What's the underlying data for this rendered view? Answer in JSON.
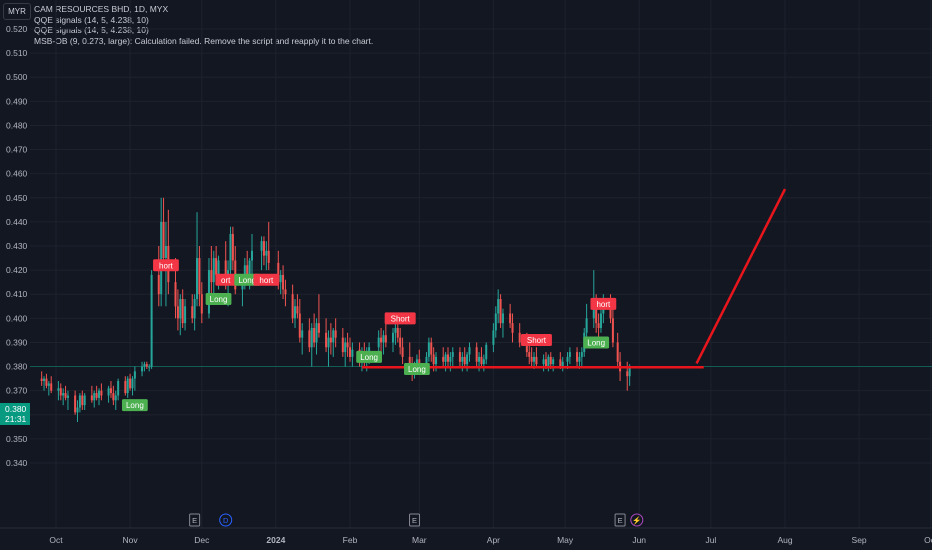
{
  "currency_button": "MYR",
  "legend": [
    "CAM RESOURCES BHD, 1D, MYX",
    "QQE signals (14, 5, 4.238, 10)",
    "QQE signals (14, 5, 4.238, 10)",
    "MSB-OB (9, 0.273, large): Calculation failed. Remove the script and reapply it to the chart."
  ],
  "price_tag": {
    "value": "0.380",
    "countdown": "21:31"
  },
  "colors": {
    "up": "#26a69a",
    "down": "#ef5350",
    "long": "#4caf50",
    "short": "#f23645",
    "drawing": "#e8161c",
    "grid": "#1e222d",
    "background": "#131722"
  },
  "chart_data": {
    "type": "candlestick",
    "ylim": [
      0.335,
      0.525
    ],
    "y_ticks": [
      "0.340",
      "0.350",
      "0.360",
      "0.370",
      "0.380",
      "0.390",
      "0.400",
      "0.410",
      "0.420",
      "0.430",
      "0.440",
      "0.450",
      "0.460",
      "0.470",
      "0.480",
      "0.490",
      "0.500",
      "0.510",
      "0.520"
    ],
    "x_ticks": [
      "Oct",
      "Nov",
      "Dec",
      "2024",
      "Feb",
      "Mar",
      "Apr",
      "May",
      "Jun",
      "Jul",
      "Aug",
      "Sep",
      "Oct"
    ],
    "current_price": 0.38,
    "event_markers": [
      {
        "label": "E",
        "date": "2023-11-28"
      },
      {
        "label": "D",
        "date": "2023-12-11"
      },
      {
        "label": "E",
        "date": "2024-02-28"
      },
      {
        "label": "E",
        "date": "2024-05-24"
      },
      {
        "label": "⚡",
        "date": "2024-05-31"
      }
    ],
    "signals": [
      {
        "label": "Long",
        "date": "2023-11-03",
        "price": 0.364
      },
      {
        "label": "hort",
        "date": "2023-11-16",
        "price": 0.422
      },
      {
        "label": "ort",
        "date": "2023-12-11",
        "price": 0.416
      },
      {
        "label": "Long",
        "date": "2023-12-08",
        "price": 0.408
      },
      {
        "label": "Long",
        "date": "2023-12-20",
        "price": 0.416
      },
      {
        "label": "hort",
        "date": "2023-12-28",
        "price": 0.416
      },
      {
        "label": "Short",
        "date": "2024-02-22",
        "price": 0.4
      },
      {
        "label": "Long",
        "date": "2024-02-09",
        "price": 0.384
      },
      {
        "label": "Long",
        "date": "2024-02-29",
        "price": 0.379
      },
      {
        "label": "Short",
        "date": "2024-04-19",
        "price": 0.391
      },
      {
        "label": "Long",
        "date": "2024-05-14",
        "price": 0.39
      },
      {
        "label": "hort",
        "date": "2024-05-17",
        "price": 0.406
      }
    ],
    "drawings": [
      {
        "type": "horizontal-line",
        "from": "2024-02-06",
        "to": "2024-06-28",
        "price": 0.3797
      },
      {
        "type": "trend-line",
        "from": {
          "date": "2024-06-25",
          "price": 0.3813
        },
        "to": {
          "date": "2024-08-01",
          "price": 0.4536
        }
      }
    ],
    "candles": [
      [
        "2023-09-25",
        0.375,
        0.378,
        0.372,
        0.374
      ],
      [
        "2023-09-26",
        0.374,
        0.376,
        0.37,
        0.375
      ],
      [
        "2023-09-27",
        0.375,
        0.377,
        0.371,
        0.372
      ],
      [
        "2023-09-28",
        0.372,
        0.374,
        0.368,
        0.373
      ],
      [
        "2023-09-29",
        0.373,
        0.376,
        0.369,
        0.37
      ],
      [
        "2023-10-02",
        0.37,
        0.374,
        0.366,
        0.371
      ],
      [
        "2023-10-03",
        0.371,
        0.373,
        0.366,
        0.368
      ],
      [
        "2023-10-04",
        0.368,
        0.371,
        0.364,
        0.369
      ],
      [
        "2023-10-05",
        0.369,
        0.372,
        0.366,
        0.367
      ],
      [
        "2023-10-06",
        0.367,
        0.37,
        0.362,
        0.368
      ],
      [
        "2023-10-09",
        0.368,
        0.37,
        0.36,
        0.361
      ],
      [
        "2023-10-10",
        0.361,
        0.366,
        0.357,
        0.363
      ],
      [
        "2023-10-11",
        0.363,
        0.369,
        0.361,
        0.368
      ],
      [
        "2023-10-12",
        0.368,
        0.37,
        0.362,
        0.364
      ],
      [
        "2023-10-13",
        0.364,
        0.369,
        0.362,
        0.368
      ],
      [
        "2023-10-16",
        0.368,
        0.372,
        0.365,
        0.366
      ],
      [
        "2023-10-17",
        0.366,
        0.37,
        0.363,
        0.369
      ],
      [
        "2023-10-18",
        0.369,
        0.372,
        0.366,
        0.367
      ],
      [
        "2023-10-19",
        0.367,
        0.371,
        0.364,
        0.37
      ],
      [
        "2023-10-20",
        0.37,
        0.373,
        0.366,
        0.368
      ],
      [
        "2023-10-23",
        0.368,
        0.372,
        0.365,
        0.371
      ],
      [
        "2023-10-24",
        0.371,
        0.374,
        0.367,
        0.369
      ],
      [
        "2023-10-25",
        0.369,
        0.372,
        0.364,
        0.366
      ],
      [
        "2023-10-26",
        0.366,
        0.37,
        0.362,
        0.368
      ],
      [
        "2023-10-27",
        0.368,
        0.375,
        0.366,
        0.374
      ],
      [
        "2023-10-30",
        0.374,
        0.376,
        0.368,
        0.369
      ],
      [
        "2023-10-31",
        0.369,
        0.376,
        0.367,
        0.375
      ],
      [
        "2023-11-01",
        0.375,
        0.377,
        0.37,
        0.371
      ],
      [
        "2023-11-02",
        0.371,
        0.376,
        0.368,
        0.375
      ],
      [
        "2023-11-03",
        0.375,
        0.38,
        0.37,
        0.378
      ],
      [
        "2023-11-06",
        0.378,
        0.382,
        0.376,
        0.38
      ],
      [
        "2023-11-07",
        0.38,
        0.382,
        0.378,
        0.381
      ],
      [
        "2023-11-08",
        0.381,
        0.382,
        0.379,
        0.38
      ],
      [
        "2023-11-09",
        0.38,
        0.381,
        0.378,
        0.38
      ],
      [
        "2023-11-10",
        0.38,
        0.42,
        0.379,
        0.418
      ],
      [
        "2023-11-13",
        0.418,
        0.43,
        0.405,
        0.41
      ],
      [
        "2023-11-14",
        0.41,
        0.45,
        0.405,
        0.44
      ],
      [
        "2023-11-15",
        0.44,
        0.45,
        0.42,
        0.425
      ],
      [
        "2023-11-16",
        0.425,
        0.44,
        0.405,
        0.43
      ],
      [
        "2023-11-17",
        0.43,
        0.445,
        0.41,
        0.415
      ],
      [
        "2023-11-20",
        0.415,
        0.425,
        0.4,
        0.405
      ],
      [
        "2023-11-21",
        0.405,
        0.412,
        0.395,
        0.4
      ],
      [
        "2023-11-22",
        0.4,
        0.41,
        0.393,
        0.408
      ],
      [
        "2023-11-23",
        0.408,
        0.412,
        0.396,
        0.398
      ],
      [
        "2023-11-24",
        0.398,
        0.408,
        0.395,
        0.405
      ],
      [
        "2023-11-27",
        0.405,
        0.41,
        0.398,
        0.4
      ],
      [
        "2023-11-28",
        0.4,
        0.41,
        0.395,
        0.408
      ],
      [
        "2023-11-29",
        0.408,
        0.444,
        0.405,
        0.425
      ],
      [
        "2023-11-30",
        0.425,
        0.43,
        0.405,
        0.41
      ],
      [
        "2023-12-01",
        0.41,
        0.415,
        0.398,
        0.402
      ],
      [
        "2023-12-04",
        0.402,
        0.425,
        0.4,
        0.42
      ],
      [
        "2023-12-05",
        0.42,
        0.43,
        0.41,
        0.415
      ],
      [
        "2023-12-06",
        0.415,
        0.428,
        0.41,
        0.425
      ],
      [
        "2023-12-07",
        0.425,
        0.43,
        0.414,
        0.418
      ],
      [
        "2023-12-08",
        0.418,
        0.426,
        0.412,
        0.424
      ],
      [
        "2023-12-11",
        0.424,
        0.432,
        0.412,
        0.416
      ],
      [
        "2023-12-12",
        0.416,
        0.424,
        0.405,
        0.42
      ],
      [
        "2023-12-13",
        0.42,
        0.438,
        0.418,
        0.435
      ],
      [
        "2023-12-14",
        0.435,
        0.438,
        0.42,
        0.424
      ],
      [
        "2023-12-15",
        0.424,
        0.43,
        0.41,
        0.412
      ],
      [
        "2023-12-18",
        0.412,
        0.418,
        0.405,
        0.415
      ],
      [
        "2023-12-19",
        0.415,
        0.425,
        0.412,
        0.422
      ],
      [
        "2023-12-20",
        0.422,
        0.428,
        0.416,
        0.418
      ],
      [
        "2023-12-21",
        0.418,
        0.425,
        0.412,
        0.424
      ],
      [
        "2023-12-22",
        0.424,
        0.435,
        0.418,
        0.428
      ],
      [
        "2023-12-26",
        0.428,
        0.434,
        0.42,
        0.432
      ],
      [
        "2023-12-27",
        0.432,
        0.434,
        0.422,
        0.426
      ],
      [
        "2023-12-28",
        0.426,
        0.432,
        0.42,
        0.428
      ],
      [
        "2023-12-29",
        0.428,
        0.44,
        0.42,
        0.423
      ],
      [
        "2024-01-02",
        0.423,
        0.428,
        0.412,
        0.415
      ],
      [
        "2024-01-03",
        0.415,
        0.42,
        0.41,
        0.418
      ],
      [
        "2024-01-04",
        0.418,
        0.422,
        0.408,
        0.412
      ],
      [
        "2024-01-05",
        0.412,
        0.416,
        0.405,
        0.41
      ],
      [
        "2024-01-08",
        0.41,
        0.414,
        0.398,
        0.4
      ],
      [
        "2024-01-09",
        0.4,
        0.408,
        0.396,
        0.405
      ],
      [
        "2024-01-10",
        0.405,
        0.41,
        0.4,
        0.402
      ],
      [
        "2024-01-11",
        0.402,
        0.408,
        0.39,
        0.392
      ],
      [
        "2024-01-12",
        0.392,
        0.398,
        0.385,
        0.395
      ],
      [
        "2024-01-15",
        0.395,
        0.4,
        0.386,
        0.388
      ],
      [
        "2024-01-16",
        0.388,
        0.398,
        0.38,
        0.396
      ],
      [
        "2024-01-17",
        0.396,
        0.402,
        0.388,
        0.39
      ],
      [
        "2024-01-18",
        0.39,
        0.4,
        0.385,
        0.398
      ],
      [
        "2024-01-19",
        0.398,
        0.41,
        0.392,
        0.394
      ],
      [
        "2024-01-22",
        0.394,
        0.4,
        0.386,
        0.388
      ],
      [
        "2024-01-23",
        0.388,
        0.395,
        0.38,
        0.392
      ],
      [
        "2024-01-24",
        0.392,
        0.398,
        0.385,
        0.39
      ],
      [
        "2024-01-25",
        0.39,
        0.396,
        0.384,
        0.395
      ],
      [
        "2024-01-26",
        0.395,
        0.4,
        0.388,
        0.392
      ],
      [
        "2024-01-29",
        0.392,
        0.396,
        0.384,
        0.386
      ],
      [
        "2024-01-30",
        0.386,
        0.392,
        0.38,
        0.39
      ],
      [
        "2024-01-31",
        0.39,
        0.394,
        0.384,
        0.388
      ],
      [
        "2024-02-01",
        0.388,
        0.392,
        0.382,
        0.384
      ],
      [
        "2024-02-02",
        0.384,
        0.39,
        0.38,
        0.387
      ],
      [
        "2024-02-05",
        0.387,
        0.39,
        0.38,
        0.383
      ],
      [
        "2024-02-06",
        0.383,
        0.388,
        0.378,
        0.386
      ],
      [
        "2024-02-07",
        0.386,
        0.39,
        0.38,
        0.382
      ],
      [
        "2024-02-08",
        0.382,
        0.388,
        0.378,
        0.386
      ],
      [
        "2024-02-09",
        0.386,
        0.39,
        0.381,
        0.388
      ],
      [
        "2024-02-13",
        0.388,
        0.395,
        0.385,
        0.392
      ],
      [
        "2024-02-14",
        0.392,
        0.396,
        0.386,
        0.39
      ],
      [
        "2024-02-15",
        0.39,
        0.395,
        0.385,
        0.393
      ],
      [
        "2024-02-16",
        0.393,
        0.398,
        0.388,
        0.39
      ],
      [
        "2024-02-19",
        0.39,
        0.396,
        0.386,
        0.394
      ],
      [
        "2024-02-20",
        0.394,
        0.398,
        0.389,
        0.396
      ],
      [
        "2024-02-21",
        0.396,
        0.4,
        0.39,
        0.392
      ],
      [
        "2024-02-22",
        0.392,
        0.396,
        0.385,
        0.388
      ],
      [
        "2024-02-23",
        0.388,
        0.392,
        0.381,
        0.384
      ],
      [
        "2024-02-26",
        0.384,
        0.39,
        0.378,
        0.38
      ],
      [
        "2024-02-27",
        0.38,
        0.384,
        0.374,
        0.377
      ],
      [
        "2024-02-28",
        0.377,
        0.382,
        0.375,
        0.38
      ],
      [
        "2024-02-29",
        0.38,
        0.385,
        0.378,
        0.383
      ],
      [
        "2024-03-01",
        0.383,
        0.387,
        0.379,
        0.381
      ],
      [
        "2024-03-04",
        0.381,
        0.386,
        0.379,
        0.384
      ],
      [
        "2024-03-05",
        0.384,
        0.392,
        0.382,
        0.39
      ],
      [
        "2024-03-06",
        0.39,
        0.392,
        0.382,
        0.385
      ],
      [
        "2024-03-07",
        0.385,
        0.388,
        0.378,
        0.381
      ],
      [
        "2024-03-08",
        0.381,
        0.386,
        0.378,
        0.384
      ],
      [
        "2024-03-11",
        0.384,
        0.388,
        0.38,
        0.382
      ],
      [
        "2024-03-12",
        0.382,
        0.386,
        0.378,
        0.385
      ],
      [
        "2024-03-13",
        0.385,
        0.388,
        0.38,
        0.382
      ],
      [
        "2024-03-14",
        0.382,
        0.386,
        0.378,
        0.384
      ],
      [
        "2024-03-15",
        0.384,
        0.388,
        0.38,
        0.386
      ],
      [
        "2024-03-18",
        0.386,
        0.388,
        0.38,
        0.382
      ],
      [
        "2024-03-19",
        0.382,
        0.386,
        0.378,
        0.384
      ],
      [
        "2024-03-20",
        0.384,
        0.388,
        0.38,
        0.381
      ],
      [
        "2024-03-21",
        0.381,
        0.386,
        0.378,
        0.385
      ],
      [
        "2024-03-22",
        0.385,
        0.39,
        0.382,
        0.388
      ],
      [
        "2024-03-25",
        0.388,
        0.39,
        0.38,
        0.382
      ],
      [
        "2024-03-26",
        0.382,
        0.386,
        0.378,
        0.384
      ],
      [
        "2024-03-27",
        0.384,
        0.388,
        0.38,
        0.381
      ],
      [
        "2024-03-28",
        0.381,
        0.385,
        0.378,
        0.383
      ],
      [
        "2024-03-29",
        0.383,
        0.39,
        0.381,
        0.389
      ],
      [
        "2024-04-01",
        0.389,
        0.398,
        0.386,
        0.395
      ],
      [
        "2024-04-02",
        0.395,
        0.405,
        0.392,
        0.402
      ],
      [
        "2024-04-03",
        0.402,
        0.412,
        0.398,
        0.408
      ],
      [
        "2024-04-04",
        0.408,
        0.41,
        0.396,
        0.398
      ],
      [
        "2024-04-05",
        0.398,
        0.404,
        0.392,
        0.402
      ],
      [
        "2024-04-08",
        0.402,
        0.406,
        0.396,
        0.398
      ],
      [
        "2024-04-09",
        0.398,
        0.402,
        0.39,
        0.394
      ],
      [
        "2024-04-12",
        0.394,
        0.398,
        0.388,
        0.39
      ],
      [
        "2024-04-15",
        0.39,
        0.394,
        0.384,
        0.386
      ],
      [
        "2024-04-16",
        0.386,
        0.39,
        0.381,
        0.384
      ],
      [
        "2024-04-17",
        0.384,
        0.388,
        0.38,
        0.382
      ],
      [
        "2024-04-18",
        0.382,
        0.386,
        0.379,
        0.384
      ],
      [
        "2024-04-19",
        0.384,
        0.388,
        0.38,
        0.381
      ],
      [
        "2024-04-22",
        0.381,
        0.385,
        0.378,
        0.383
      ],
      [
        "2024-04-23",
        0.383,
        0.386,
        0.379,
        0.38
      ],
      [
        "2024-04-24",
        0.38,
        0.385,
        0.378,
        0.384
      ],
      [
        "2024-04-25",
        0.384,
        0.386,
        0.379,
        0.381
      ],
      [
        "2024-04-26",
        0.381,
        0.384,
        0.378,
        0.383
      ],
      [
        "2024-04-29",
        0.383,
        0.386,
        0.379,
        0.38
      ],
      [
        "2024-04-30",
        0.38,
        0.384,
        0.378,
        0.382
      ],
      [
        "2024-05-02",
        0.382,
        0.386,
        0.379,
        0.384
      ],
      [
        "2024-05-03",
        0.384,
        0.388,
        0.381,
        0.386
      ],
      [
        "2024-05-06",
        0.386,
        0.388,
        0.38,
        0.382
      ],
      [
        "2024-05-07",
        0.382,
        0.386,
        0.379,
        0.384
      ],
      [
        "2024-05-08",
        0.384,
        0.388,
        0.38,
        0.386
      ],
      [
        "2024-05-09",
        0.386,
        0.396,
        0.384,
        0.394
      ],
      [
        "2024-05-10",
        0.394,
        0.406,
        0.39,
        0.4
      ],
      [
        "2024-05-13",
        0.4,
        0.42,
        0.396,
        0.404
      ],
      [
        "2024-05-14",
        0.404,
        0.41,
        0.394,
        0.398
      ],
      [
        "2024-05-15",
        0.398,
        0.402,
        0.392,
        0.396
      ],
      [
        "2024-05-16",
        0.396,
        0.404,
        0.394,
        0.402
      ],
      [
        "2024-05-17",
        0.402,
        0.41,
        0.398,
        0.408
      ],
      [
        "2024-05-20",
        0.408,
        0.41,
        0.398,
        0.4
      ],
      [
        "2024-05-21",
        0.4,
        0.404,
        0.388,
        0.39
      ],
      [
        "2024-05-23",
        0.39,
        0.394,
        0.38,
        0.382
      ],
      [
        "2024-05-24",
        0.382,
        0.386,
        0.374,
        0.378
      ],
      [
        "2024-05-27",
        0.378,
        0.382,
        0.37,
        0.376
      ],
      [
        "2024-05-28",
        0.376,
        0.381,
        0.372,
        0.38
      ]
    ]
  }
}
